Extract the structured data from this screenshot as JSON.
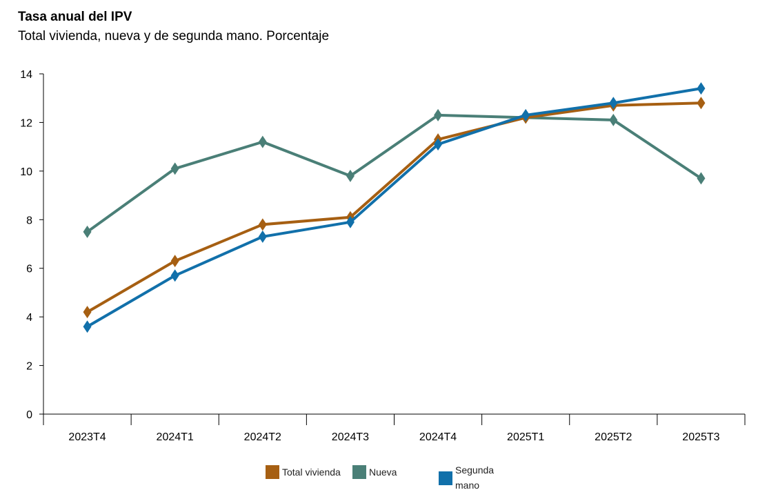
{
  "chart_data": {
    "type": "line",
    "title": "Tasa anual del IPV",
    "subtitle": "Total vivienda, nueva y de segunda mano. Porcentaje",
    "categories": [
      "2023T4",
      "2024T1",
      "2024T2",
      "2024T3",
      "2024T4",
      "2025T1",
      "2025T2",
      "2025T3"
    ],
    "ylim": [
      0,
      14
    ],
    "yticks": [
      0,
      2,
      4,
      6,
      8,
      10,
      12,
      14
    ],
    "grid": false,
    "legend_position": "bottom",
    "series": [
      {
        "name": "Total vivienda",
        "color": "#a65f12",
        "values": [
          4.2,
          6.3,
          7.8,
          8.1,
          11.3,
          12.2,
          12.7,
          12.8
        ]
      },
      {
        "name": "Nueva",
        "color": "#4a7f77",
        "values": [
          7.5,
          10.1,
          11.2,
          9.8,
          12.3,
          12.2,
          12.1,
          9.7
        ]
      },
      {
        "name": "Segunda mano",
        "color": "#1170aa",
        "values": [
          3.6,
          5.7,
          7.3,
          7.9,
          11.1,
          12.3,
          12.8,
          13.4
        ]
      }
    ]
  }
}
